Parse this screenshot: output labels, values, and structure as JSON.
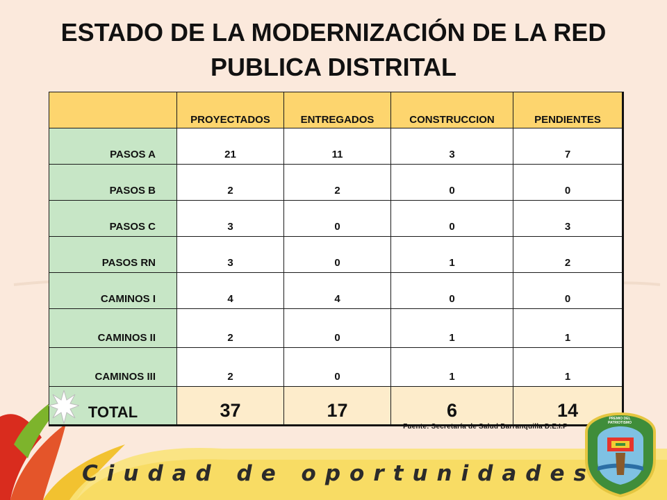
{
  "title": {
    "line1": "ESTADO DE LA MODERNIZACIÓN DE LA RED",
    "line2": "PUBLICA DISTRITAL"
  },
  "table": {
    "columns": [
      "PROYECTADOS",
      "ENTREGADOS",
      "CONSTRUCCION",
      "PENDIENTES"
    ],
    "rows": [
      {
        "label": "PASOS A",
        "values": [
          "21",
          "11",
          "3",
          "7"
        ]
      },
      {
        "label": "PASOS B",
        "values": [
          "2",
          "2",
          "0",
          "0"
        ]
      },
      {
        "label": "PASOS C",
        "values": [
          "3",
          "0",
          "0",
          "3"
        ]
      },
      {
        "label": "PASOS RN",
        "values": [
          "3",
          "0",
          "1",
          "2"
        ]
      },
      {
        "label": "CAMINOS  I",
        "values": [
          "4",
          "4",
          "0",
          "0"
        ]
      },
      {
        "label": "CAMINOS  II",
        "values": [
          "2",
          "0",
          "1",
          "1"
        ]
      },
      {
        "label": "CAMINOS  III",
        "values": [
          "2",
          "0",
          "1",
          "1"
        ]
      }
    ],
    "total": {
      "label": "TOTAL",
      "values": [
        "37",
        "17",
        "6",
        "14"
      ]
    }
  },
  "source": "Fuente: Secretaría de Salud Barranquilla  D.E.I.P",
  "slogan": "Ciudad de oportunidades",
  "seal_text": "PREMIO DEL PATRIOTISMO",
  "colors": {
    "background": "#fbe9dc",
    "header": "#fdd56e",
    "label_cells": "#c7e6c6",
    "total_cells": "#fdeccb"
  }
}
